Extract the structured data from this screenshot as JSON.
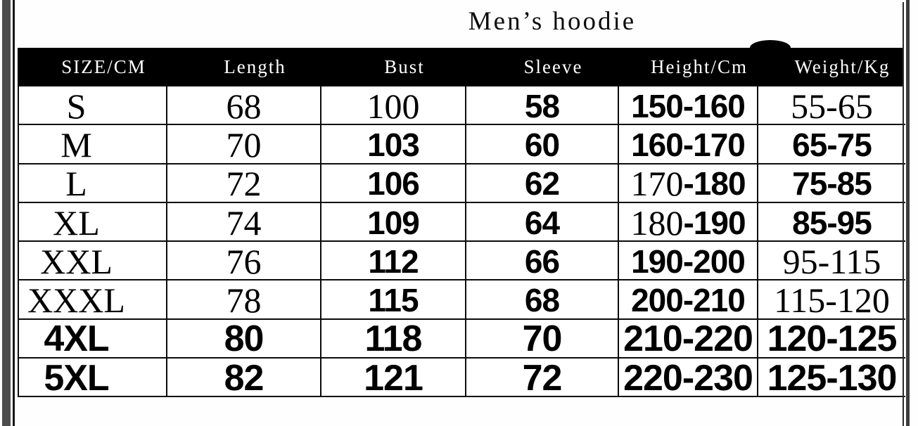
{
  "colors": {
    "page_bg": "#ffffff",
    "header_bg": "#000000",
    "header_text": "#ffffff",
    "grid_line": "#000000",
    "side_bar_gray": "#4e4e4e"
  },
  "chart_data": {
    "type": "table",
    "title": "Men’s hoodie",
    "columns": [
      "SIZE/CM",
      "Length",
      "Bust",
      "Sleeve",
      "Height/Cm",
      "Weight/Kg"
    ],
    "rows": [
      [
        "S",
        "68",
        "100",
        "58",
        "150-160",
        "55-65"
      ],
      [
        "M",
        "70",
        "103",
        "60",
        "160-170",
        "65-75"
      ],
      [
        "L",
        "72",
        "106",
        "62",
        "170-180",
        "75-85"
      ],
      [
        "XL",
        "74",
        "109",
        "64",
        "180-190",
        "85-95"
      ],
      [
        "XXL",
        "76",
        "112",
        "66",
        "190-200",
        "95-115"
      ],
      [
        "XXXL",
        "78",
        "115",
        "68",
        "200-210",
        "115-120"
      ],
      [
        "4XL",
        "80",
        "118",
        "70",
        "210-220",
        "120-125"
      ],
      [
        "5XL",
        "82",
        "121",
        "72",
        "220-230",
        "125-130"
      ]
    ],
    "layout_hints": {
      "legend": "cell_styles mirror the mixed typography of the original scan: serif = thin serif digits, sans = heavy grotesque digits, mixed = serif start + sans end",
      "cell_styles": [
        [
          "serif",
          "serif",
          "serif",
          "sans",
          "sans",
          "serif"
        ],
        [
          "serif",
          "serif",
          "sans",
          "sans",
          "sans",
          "sans"
        ],
        [
          "serif",
          "serif",
          "sans",
          "sans",
          "mixed",
          "sans"
        ],
        [
          "serif",
          "serif",
          "sans",
          "sans",
          "mixed",
          "sans"
        ],
        [
          "serif",
          "serif",
          "sans",
          "sans",
          "sans",
          "serif"
        ],
        [
          "serif",
          "serif",
          "sans",
          "sans",
          "sans",
          "serif"
        ],
        [
          "sans",
          "sans",
          "sans",
          "sans",
          "sans",
          "sans"
        ],
        [
          "sans",
          "sans",
          "sans",
          "sans",
          "sans",
          "sans"
        ]
      ],
      "large_rows": [
        6,
        7
      ],
      "grid_on": true,
      "header_style": "white-on-black"
    }
  }
}
